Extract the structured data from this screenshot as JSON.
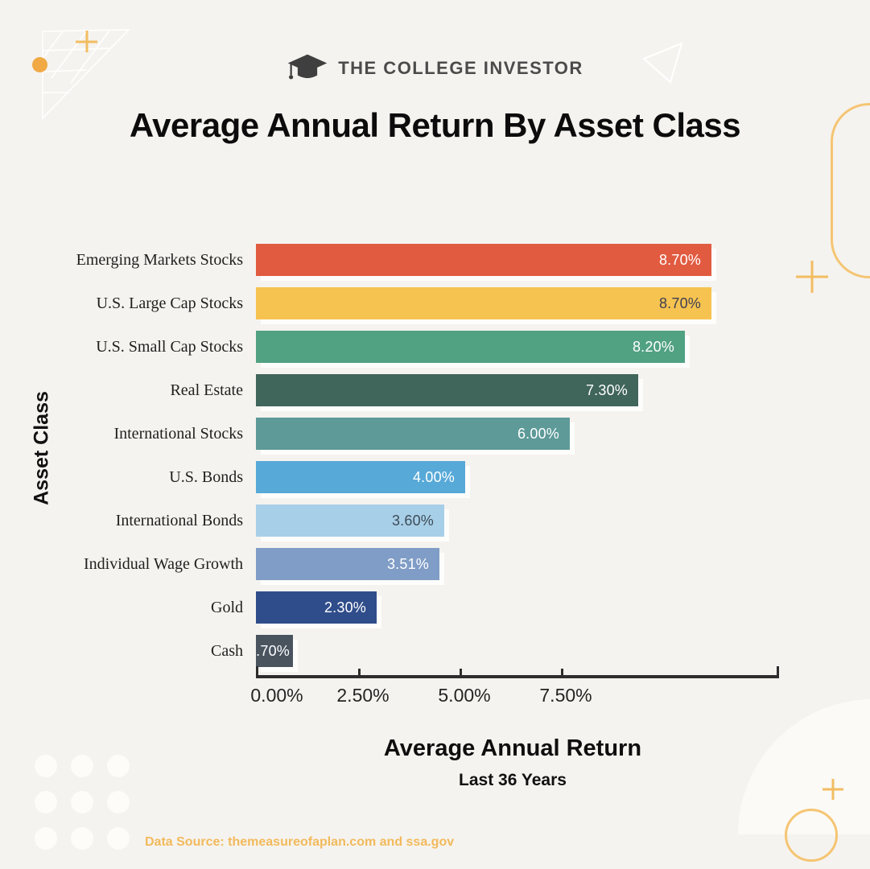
{
  "page": {
    "background": "#f5f3ef"
  },
  "header": {
    "brand": "THE COLLEGE INVESTOR",
    "title": "Average Annual Return By Asset Class"
  },
  "chart_data": {
    "type": "bar",
    "orientation": "horizontal",
    "title": "Average Annual Return By Asset Class",
    "ylabel": "Asset Class",
    "xlabel": "Average Annual Return",
    "xlabel_subtitle": "Last 36 Years",
    "categories": [
      "Emerging Markets Stocks",
      "U.S. Large Cap Stocks",
      "U.S. Small Cap Stocks",
      "Real Estate",
      "International Stocks",
      "U.S. Bonds",
      "International Bonds",
      "Individual Wage Growth",
      "Gold",
      "Cash"
    ],
    "values": [
      8.7,
      8.7,
      8.2,
      7.3,
      6.0,
      4.0,
      3.6,
      3.51,
      2.3,
      0.7
    ],
    "value_labels": [
      "8.70%",
      "8.70%",
      "8.20%",
      "7.30%",
      "6.00%",
      "4.00%",
      "3.60%",
      "3.51%",
      "2.30%",
      ".70%"
    ],
    "bar_colors": [
      "#e15b41",
      "#f6c350",
      "#51a183",
      "#40655b",
      "#5d9a98",
      "#57a9d8",
      "#a8cfe8",
      "#7f9dc6",
      "#2f4d8a",
      "#49545f"
    ],
    "value_text_colors": [
      "#ffffff",
      "#3f3f52",
      "#ffffff",
      "#ffffff",
      "#ffffff",
      "#ffffff",
      "#3e4c57",
      "#ffffff",
      "#ffffff",
      "#ffffff"
    ],
    "x_ticks": [
      "0.00%",
      "2.50%",
      "5.00%",
      "7.50%"
    ],
    "xlim": [
      0,
      10
    ],
    "grid": false,
    "legend": false
  },
  "footer": {
    "data_source": "Data Source: themeasureofaplan.com and ssa.gov"
  },
  "colors": {
    "background": "#f5f3ef",
    "accent_orange": "#f2bd62",
    "axis": "#2d2d2d",
    "bar_shadow": "#ffffff"
  }
}
